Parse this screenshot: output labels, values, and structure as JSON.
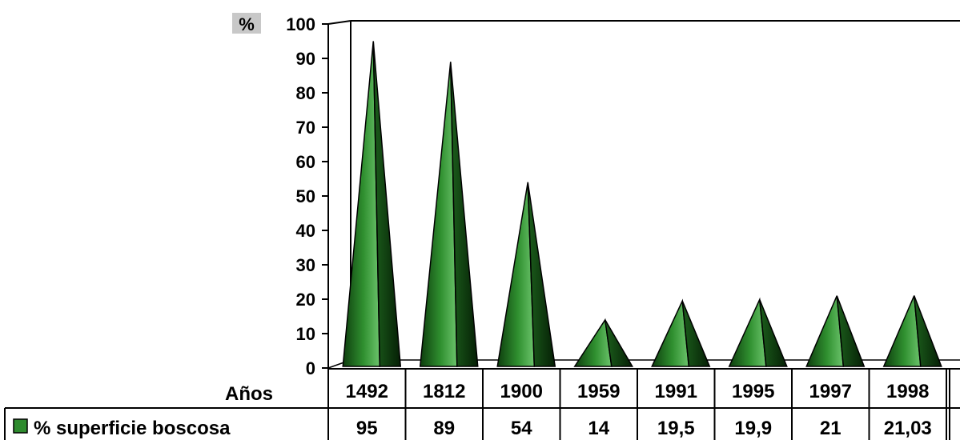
{
  "chart_data": {
    "type": "table",
    "chart_style": "cone",
    "unit_label": "%",
    "xlabel": "Años",
    "ylim": [
      0,
      100
    ],
    "y_ticks": [
      "0",
      "10",
      "20",
      "30",
      "40",
      "50",
      "60",
      "70",
      "80",
      "90",
      "100"
    ],
    "categories": [
      "1492",
      "1812",
      "1900",
      "1959",
      "1991",
      "1995",
      "1997",
      "1998"
    ],
    "series": [
      {
        "name": "% superficie boscosa",
        "values": [
          95,
          89,
          54,
          14,
          19.5,
          19.9,
          21,
          21.03
        ],
        "value_labels": [
          "95",
          "89",
          "54",
          "14",
          "19,5",
          "19,9",
          "21",
          "21,03"
        ],
        "color": "#2e8b2e"
      }
    ],
    "grid": false,
    "legend": "data-table"
  }
}
